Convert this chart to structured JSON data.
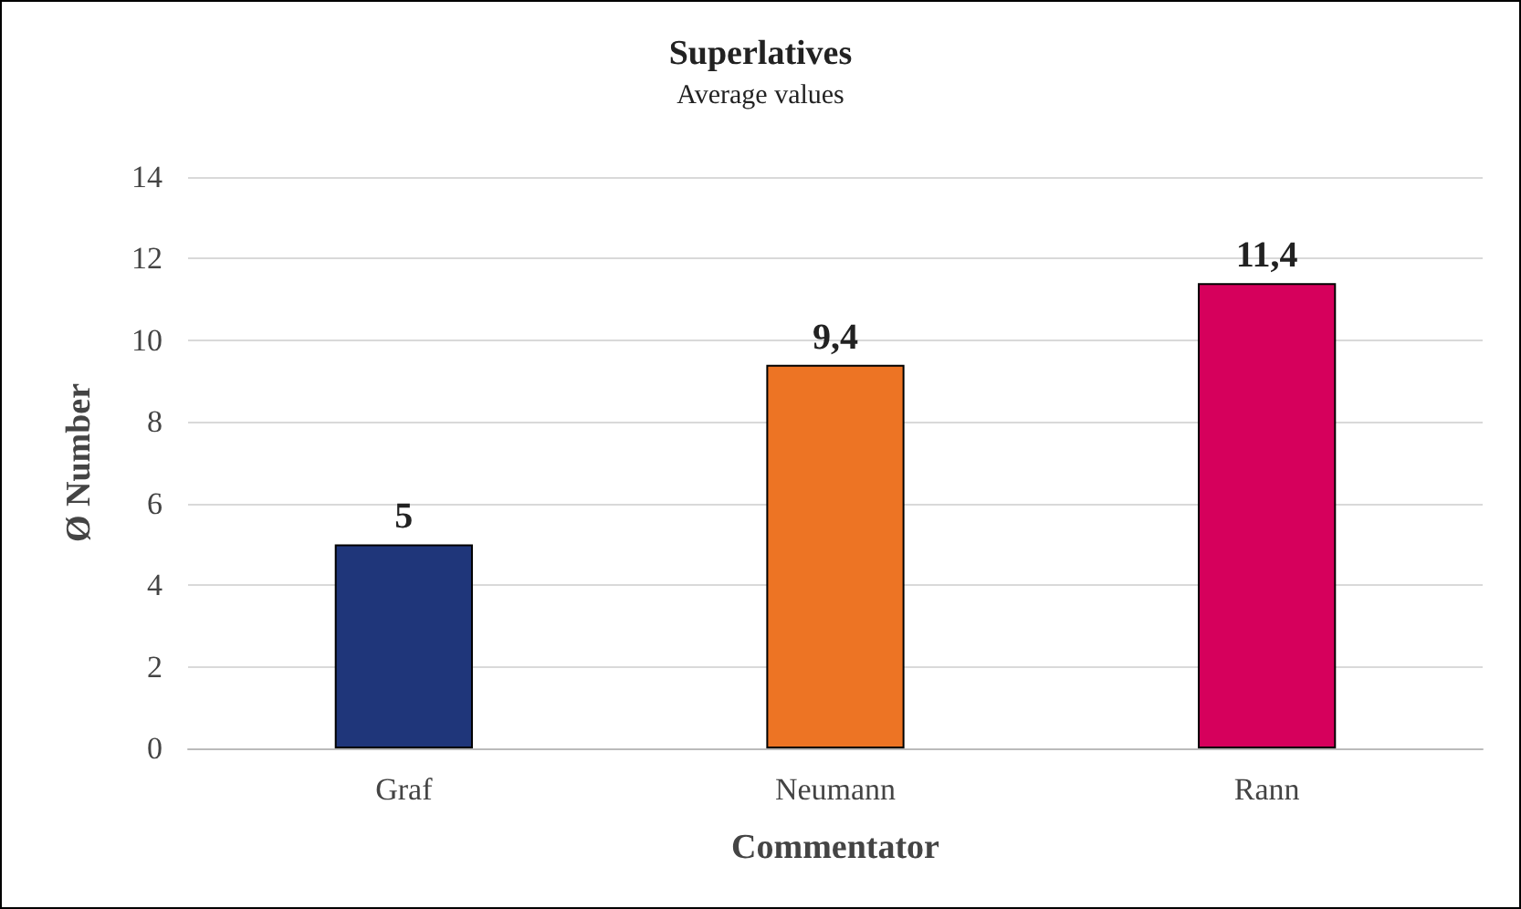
{
  "chart_data": {
    "type": "bar",
    "title": "Superlatives",
    "subtitle": "Average values",
    "xlabel": "Commentator",
    "ylabel": "Ø Number",
    "categories": [
      "Graf",
      "Neumann",
      "Rann"
    ],
    "values": [
      5,
      9.4,
      11.4
    ],
    "colors": [
      "#1f367a",
      "#ed7424",
      "#d6005c"
    ],
    "value_labels": [
      "5",
      "9,4",
      "11,4"
    ],
    "ylim": [
      0,
      14
    ],
    "yticks": [
      0,
      2,
      4,
      6,
      8,
      10,
      12,
      14
    ],
    "grid": "y"
  }
}
